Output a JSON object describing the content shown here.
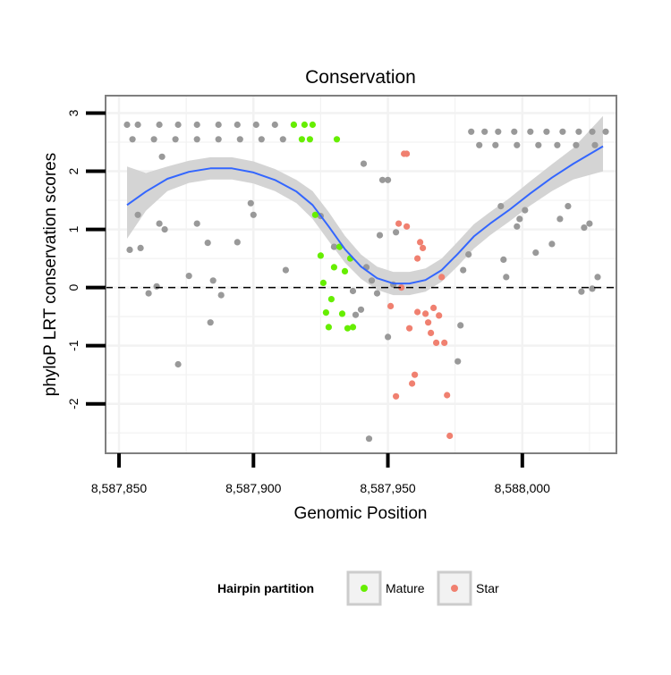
{
  "chart_data": {
    "type": "scatter",
    "title": "Conservation",
    "xlabel": "Genomic Position",
    "ylabel": "phyloP LRT conservation scores",
    "xlim": [
      8587845,
      8588035
    ],
    "ylim": [
      -2.85,
      3.3
    ],
    "x_ticks": [
      8587850,
      8587900,
      8587950,
      8588000
    ],
    "x_tick_labels": [
      "8,587,850",
      "8,587,900",
      "8,587,950",
      "8,588,000"
    ],
    "y_ticks": [
      -2,
      -1,
      0,
      1,
      2,
      3
    ],
    "y_tick_labels": [
      "-2",
      "-1",
      "0",
      "1",
      "2",
      "3"
    ],
    "reference_line": {
      "y": 0,
      "style": "dashed"
    },
    "colors": {
      "other": "#999999",
      "mature": "#66ee00",
      "star": "#f08070",
      "smooth": "#3366ff",
      "ribbon": "#d4d4d4",
      "gridline": "#f2f2f2",
      "panel_border": "#7f7f7f"
    },
    "legend": {
      "title": "Hairpin partition",
      "position": "bottom",
      "entries": [
        {
          "key": "mature",
          "label": "Mature"
        },
        {
          "key": "star",
          "label": "Star"
        }
      ]
    },
    "smooth": {
      "method": "loess",
      "x": [
        8587853,
        8587860,
        8587868,
        8587876,
        8587884,
        8587892,
        8587900,
        8587908,
        8587916,
        8587922,
        8587928,
        8587934,
        8587940,
        8587946,
        8587952,
        8587958,
        8587964,
        8587970,
        8587976,
        8587982,
        8587988,
        8587995,
        8588003,
        8588011,
        8588019,
        8588030
      ],
      "y": [
        1.42,
        1.65,
        1.87,
        1.99,
        2.05,
        2.05,
        1.98,
        1.85,
        1.65,
        1.42,
        1.05,
        0.66,
        0.36,
        0.16,
        0.07,
        0.07,
        0.13,
        0.3,
        0.58,
        0.88,
        1.1,
        1.33,
        1.62,
        1.89,
        2.13,
        2.43
      ],
      "lower": [
        0.84,
        1.32,
        1.66,
        1.8,
        1.86,
        1.86,
        1.79,
        1.66,
        1.45,
        1.18,
        0.8,
        0.43,
        0.15,
        -0.04,
        -0.13,
        -0.13,
        -0.07,
        0.1,
        0.37,
        0.67,
        0.9,
        1.13,
        1.41,
        1.66,
        1.86,
        2.0
      ],
      "upper": [
        2.08,
        1.97,
        2.08,
        2.18,
        2.24,
        2.24,
        2.17,
        2.04,
        1.85,
        1.66,
        1.3,
        0.89,
        0.57,
        0.36,
        0.27,
        0.27,
        0.33,
        0.5,
        0.79,
        1.09,
        1.3,
        1.53,
        1.83,
        2.12,
        2.4,
        2.95
      ]
    },
    "series": [
      {
        "name": "other",
        "points": [
          [
            8587853,
            2.8
          ],
          [
            8587857,
            2.8
          ],
          [
            8587865,
            2.8
          ],
          [
            8587872,
            2.8
          ],
          [
            8587879,
            2.8
          ],
          [
            8587887,
            2.8
          ],
          [
            8587894,
            2.8
          ],
          [
            8587901,
            2.8
          ],
          [
            8587908,
            2.8
          ],
          [
            8587915,
            2.8
          ],
          [
            8587855,
            2.55
          ],
          [
            8587863,
            2.55
          ],
          [
            8587871,
            2.55
          ],
          [
            8587879,
            2.55
          ],
          [
            8587887,
            2.55
          ],
          [
            8587895,
            2.55
          ],
          [
            8587903,
            2.55
          ],
          [
            8587911,
            2.55
          ],
          [
            8587866,
            2.25
          ],
          [
            8587854,
            0.65
          ],
          [
            8587857,
            1.25
          ],
          [
            8587858,
            0.68
          ],
          [
            8587861,
            -0.1
          ],
          [
            8587864,
            0.02
          ],
          [
            8587865,
            1.1
          ],
          [
            8587867,
            1.0
          ],
          [
            8587872,
            -1.32
          ],
          [
            8587876,
            0.2
          ],
          [
            8587879,
            1.1
          ],
          [
            8587883,
            0.77
          ],
          [
            8587884,
            -0.6
          ],
          [
            8587885,
            0.12
          ],
          [
            8587888,
            -0.13
          ],
          [
            8587894,
            0.78
          ],
          [
            8587899,
            1.45
          ],
          [
            8587900,
            1.25
          ],
          [
            8587912,
            0.3
          ],
          [
            8587925,
            1.23
          ],
          [
            8587930,
            0.7
          ],
          [
            8587937,
            -0.06
          ],
          [
            8587938,
            -0.47
          ],
          [
            8587940,
            -0.38
          ],
          [
            8587941,
            2.13
          ],
          [
            8587942,
            0.35
          ],
          [
            8587943,
            -2.6
          ],
          [
            8587944,
            0.12
          ],
          [
            8587946,
            -0.1
          ],
          [
            8587947,
            0.9
          ],
          [
            8587948,
            1.85
          ],
          [
            8587950,
            1.85
          ],
          [
            8587950,
            -0.85
          ],
          [
            8587952,
            0.05
          ],
          [
            8587953,
            0.95
          ],
          [
            8587976,
            -1.27
          ],
          [
            8587977,
            -0.65
          ],
          [
            8587978,
            0.3
          ],
          [
            8587980,
            0.57
          ],
          [
            8587981,
            2.68
          ],
          [
            8587986,
            2.68
          ],
          [
            8587991,
            2.68
          ],
          [
            8587997,
            2.68
          ],
          [
            8588003,
            2.68
          ],
          [
            8588009,
            2.68
          ],
          [
            8588015,
            2.68
          ],
          [
            8588021,
            2.68
          ],
          [
            8588026,
            2.68
          ],
          [
            8588031,
            2.68
          ],
          [
            8587984,
            2.45
          ],
          [
            8587990,
            2.45
          ],
          [
            8587998,
            2.45
          ],
          [
            8588006,
            2.45
          ],
          [
            8588013,
            2.45
          ],
          [
            8588020,
            2.45
          ],
          [
            8588027,
            2.45
          ],
          [
            8587992,
            1.4
          ],
          [
            8587993,
            0.48
          ],
          [
            8587994,
            0.18
          ],
          [
            8587998,
            1.05
          ],
          [
            8587999,
            1.18
          ],
          [
            8588001,
            1.33
          ],
          [
            8588005,
            0.6
          ],
          [
            8588011,
            0.75
          ],
          [
            8588014,
            1.18
          ],
          [
            8588017,
            1.4
          ],
          [
            8588022,
            -0.07
          ],
          [
            8588023,
            1.03
          ],
          [
            8588025,
            1.1
          ],
          [
            8588026,
            -0.02
          ],
          [
            8588028,
            0.18
          ]
        ]
      },
      {
        "name": "mature",
        "points": [
          [
            8587915,
            2.8
          ],
          [
            8587919,
            2.8
          ],
          [
            8587922,
            2.8
          ],
          [
            8587918,
            2.55
          ],
          [
            8587921,
            2.55
          ],
          [
            8587931,
            2.55
          ],
          [
            8587923,
            1.25
          ],
          [
            8587925,
            0.55
          ],
          [
            8587926,
            0.08
          ],
          [
            8587927,
            -0.43
          ],
          [
            8587928,
            -0.68
          ],
          [
            8587929,
            -0.2
          ],
          [
            8587930,
            0.35
          ],
          [
            8587932,
            0.7
          ],
          [
            8587933,
            -0.45
          ],
          [
            8587934,
            0.28
          ],
          [
            8587935,
            -0.7
          ],
          [
            8587936,
            0.5
          ],
          [
            8587937,
            -0.68
          ]
        ]
      },
      {
        "name": "star",
        "points": [
          [
            8587956,
            2.3
          ],
          [
            8587957,
            2.3
          ],
          [
            8587951,
            -0.32
          ],
          [
            8587953,
            -1.87
          ],
          [
            8587954,
            1.1
          ],
          [
            8587955,
            0.0
          ],
          [
            8587957,
            1.05
          ],
          [
            8587958,
            -0.7
          ],
          [
            8587959,
            -1.65
          ],
          [
            8587960,
            -1.5
          ],
          [
            8587961,
            -0.42
          ],
          [
            8587961,
            0.5
          ],
          [
            8587962,
            0.78
          ],
          [
            8587963,
            0.68
          ],
          [
            8587964,
            -0.45
          ],
          [
            8587965,
            -0.6
          ],
          [
            8587966,
            -0.78
          ],
          [
            8587967,
            -0.35
          ],
          [
            8587968,
            -0.95
          ],
          [
            8587969,
            -0.48
          ],
          [
            8587970,
            0.18
          ],
          [
            8587971,
            -0.95
          ],
          [
            8587972,
            -1.85
          ],
          [
            8587973,
            -2.55
          ]
        ]
      }
    ]
  }
}
